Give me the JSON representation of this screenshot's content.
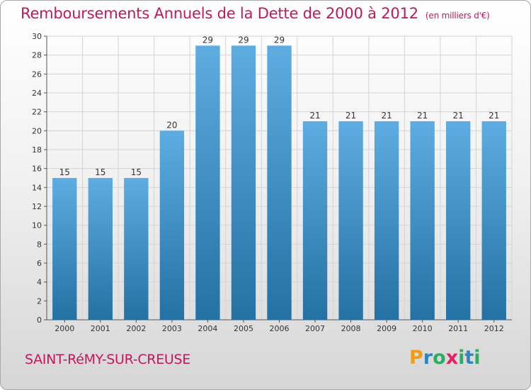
{
  "title": "Remboursements Annuels de la Dette de 2000 à 2012",
  "unit_note": "(en milliers d'€)",
  "commune": "SAINT-RéMY-SUR-CREUSE",
  "brand": {
    "letters": [
      "P",
      "r",
      "o",
      "x",
      "i",
      "t",
      "i"
    ],
    "colors": [
      "#f39c12",
      "#2e86c1",
      "#27ae60",
      "#e91e63",
      "#27ae60",
      "#2e86c1",
      "#27ae60"
    ]
  },
  "colors": {
    "bar_top": "#5dade2",
    "bar_bottom": "#2471a3",
    "title": "#c2185b",
    "grid": "#d4d4d4",
    "axis_text": "#333333"
  },
  "chart_data": {
    "type": "bar",
    "title": "Remboursements Annuels de la Dette de 2000 à 2012",
    "xlabel": "",
    "ylabel": "",
    "ylim": [
      0,
      30
    ],
    "yticks": [
      0,
      2,
      4,
      6,
      8,
      10,
      12,
      14,
      16,
      18,
      20,
      22,
      24,
      26,
      28,
      30
    ],
    "categories": [
      "2000",
      "2001",
      "2002",
      "2003",
      "2004",
      "2005",
      "2006",
      "2007",
      "2008",
      "2009",
      "2010",
      "2011",
      "2012"
    ],
    "values": [
      15,
      15,
      15,
      20,
      29,
      29,
      29,
      21,
      21,
      21,
      21,
      21,
      21
    ],
    "grid": true,
    "legend": "none"
  }
}
